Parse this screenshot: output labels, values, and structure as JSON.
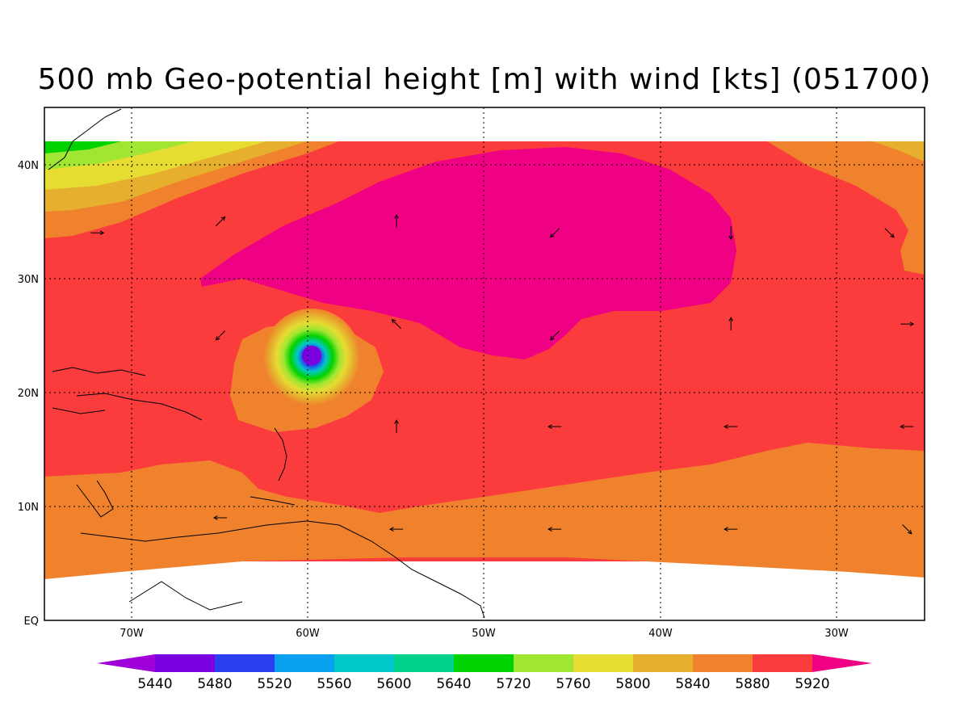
{
  "title": "500 mb Geo-potential height [m] with wind [kts] (051700)",
  "axes": {
    "x_ticks": [
      "70W",
      "60W",
      "50W",
      "40W",
      "30W"
    ],
    "y_ticks": [
      "EQ",
      "10N",
      "20N",
      "30N",
      "40N"
    ]
  },
  "colorbar": {
    "labels": [
      "5440",
      "5480",
      "5520",
      "5560",
      "5600",
      "5640",
      "5720",
      "5760",
      "5800",
      "5840",
      "5880",
      "5920"
    ],
    "colors": [
      "#a000d8",
      "#7a00e0",
      "#2a3ff0",
      "#0aa0f0",
      "#00c8c8",
      "#00d28c",
      "#00d200",
      "#a0e632",
      "#e6dc32",
      "#e6af2d",
      "#f0822d",
      "#fa3c3c",
      "#f00082"
    ]
  },
  "chart_data": {
    "type": "heatmap",
    "title": "500 mb Geo-potential height [m] with wind [kts] (051700)",
    "variable": "geopotential height",
    "units": "m",
    "lon_range": [
      -75,
      -25
    ],
    "lat_range": [
      0,
      45
    ],
    "contour_levels": [
      5440,
      5480,
      5520,
      5560,
      5600,
      5640,
      5720,
      5760,
      5800,
      5840,
      5880,
      5920
    ],
    "features": [
      {
        "name": "high",
        "center": {
          "lon": -44,
          "lat": 33
        },
        "value_min": 5920
      },
      {
        "name": "low",
        "center": {
          "lon": -60,
          "lat": 23
        },
        "value_min": 5440
      }
    ],
    "wind_vectors": [
      {
        "lon": -72,
        "lat": 34,
        "dir": "E"
      },
      {
        "lon": -65,
        "lat": 35,
        "dir": "NE"
      },
      {
        "lon": -55,
        "lat": 35,
        "dir": "N"
      },
      {
        "lon": -46,
        "lat": 34,
        "dir": "SW"
      },
      {
        "lon": -36,
        "lat": 34,
        "dir": "S"
      },
      {
        "lon": -27,
        "lat": 34,
        "dir": "SE"
      },
      {
        "lon": -65,
        "lat": 25,
        "dir": "SW"
      },
      {
        "lon": -55,
        "lat": 26,
        "dir": "NW"
      },
      {
        "lon": -46,
        "lat": 25,
        "dir": "SW"
      },
      {
        "lon": -36,
        "lat": 26,
        "dir": "N"
      },
      {
        "lon": -26,
        "lat": 26,
        "dir": "E"
      },
      {
        "lon": -55,
        "lat": 17,
        "dir": "N"
      },
      {
        "lon": -46,
        "lat": 17,
        "dir": "W"
      },
      {
        "lon": -36,
        "lat": 17,
        "dir": "W"
      },
      {
        "lon": -26,
        "lat": 17,
        "dir": "W"
      },
      {
        "lon": -65,
        "lat": 9,
        "dir": "W"
      },
      {
        "lon": -55,
        "lat": 8,
        "dir": "W"
      },
      {
        "lon": -46,
        "lat": 8,
        "dir": "W"
      },
      {
        "lon": -36,
        "lat": 8,
        "dir": "W"
      },
      {
        "lon": -26,
        "lat": 8,
        "dir": "SE"
      }
    ]
  }
}
